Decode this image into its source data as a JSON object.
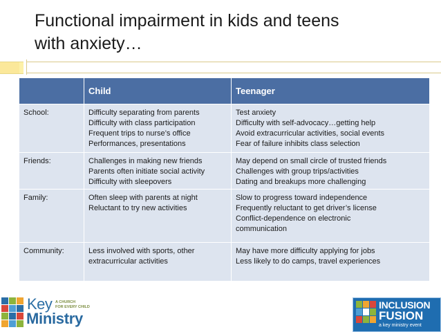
{
  "slide": {
    "title_line1": "Functional impairment in kids and teens",
    "title_line2": "with anxiety…"
  },
  "table": {
    "headers": [
      "",
      "Child",
      "Teenager"
    ],
    "rows": [
      {
        "label": "School:",
        "child": [
          "Difficulty separating from parents",
          "Difficulty with class participation",
          "Frequent trips to nurse’s office",
          "Performances, presentations"
        ],
        "teen": [
          "Test anxiety",
          "Difficulty with self-advocacy…getting help",
          "Avoid extracurricular activities, social events",
          "Fear of failure inhibits class selection"
        ]
      },
      {
        "label": "Friends:",
        "child": [
          "Challenges in making new friends",
          "Parents often initiate social activity",
          "Difficulty with sleepovers"
        ],
        "teen": [
          "May depend on small circle of trusted friends",
          "Challenges with group trips/activities",
          "Dating and breakups more challenging"
        ]
      },
      {
        "label": "Family:",
        "child": [
          "Often sleep with parents at night",
          "Reluctant to try new activities"
        ],
        "teen": [
          "Slow to progress toward independence",
          "Frequently reluctant to get driver’s license",
          "Conflict-dependence on electronic communication"
        ]
      },
      {
        "label": "Community:",
        "child": [
          "Less involved with sports, other extracurricular activities"
        ],
        "teen": [
          "May have more difficulty applying for jobs",
          "Less likely to do camps, travel experiences"
        ]
      }
    ]
  },
  "logos": {
    "key_ministry": {
      "word1": "Key",
      "tagline_line1": "A CHURCH",
      "tagline_line2": "FOR EVERY CHILD",
      "word2": "Ministry"
    },
    "inclusion_fusion": {
      "word1": "INCLUSION",
      "word2": "FUSION",
      "tagline": "a key ministry event"
    }
  },
  "colors": {
    "header_bg": "#4b6ea3",
    "row_bg": "#dde4ef",
    "accent_yellow": "#fbe89a",
    "logo_blue": "#1f6db0"
  }
}
